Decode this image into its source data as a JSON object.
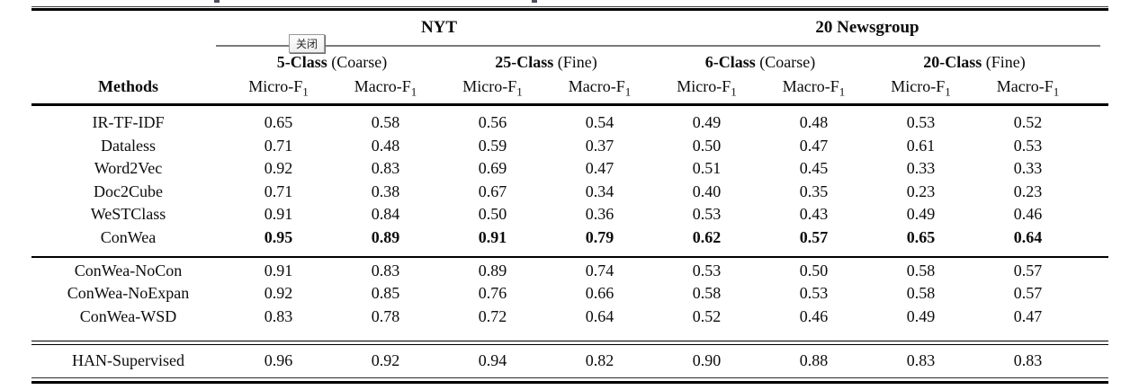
{
  "overlay": {
    "close_button_label": "关闭"
  },
  "colors": {
    "rule_black": "#000000",
    "cmidrule_gray": "#7b7b7b",
    "background": "#ffffff"
  },
  "table": {
    "header": {
      "methods_label": "Methods",
      "groups": [
        {
          "title": "NYT"
        },
        {
          "title": "20 Newsgroup"
        }
      ],
      "subgroups": [
        {
          "bold": "5-Class",
          "rest": " (Coarse)"
        },
        {
          "bold": "25-Class",
          "rest": " (Fine)"
        },
        {
          "bold": "6-Class",
          "rest": " (Coarse)"
        },
        {
          "bold": "20-Class",
          "rest": " (Fine)"
        }
      ],
      "metrics": [
        {
          "name": "Micro-F",
          "sub": "1"
        },
        {
          "name": "Macro-F",
          "sub": "1"
        },
        {
          "name": "Micro-F",
          "sub": "1"
        },
        {
          "name": "Macro-F",
          "sub": "1"
        },
        {
          "name": "Micro-F",
          "sub": "1"
        },
        {
          "name": "Macro-F",
          "sub": "1"
        },
        {
          "name": "Micro-F",
          "sub": "1"
        },
        {
          "name": "Macro-F",
          "sub": "1"
        }
      ]
    },
    "sections": {
      "baselines": [
        {
          "method": "IR-TF-IDF",
          "bold": false,
          "values": [
            "0.65",
            "0.58",
            "0.56",
            "0.54",
            "0.49",
            "0.48",
            "0.53",
            "0.52"
          ]
        },
        {
          "method": "Dataless",
          "bold": false,
          "values": [
            "0.71",
            "0.48",
            "0.59",
            "0.37",
            "0.50",
            "0.47",
            "0.61",
            "0.53"
          ]
        },
        {
          "method": "Word2Vec",
          "bold": false,
          "values": [
            "0.92",
            "0.83",
            "0.69",
            "0.47",
            "0.51",
            "0.45",
            "0.33",
            "0.33"
          ]
        },
        {
          "method": "Doc2Cube",
          "bold": false,
          "values": [
            "0.71",
            "0.38",
            "0.67",
            "0.34",
            "0.40",
            "0.35",
            "0.23",
            "0.23"
          ]
        },
        {
          "method": "WeSTClass",
          "bold": false,
          "values": [
            "0.91",
            "0.84",
            "0.50",
            "0.36",
            "0.53",
            "0.43",
            "0.49",
            "0.46"
          ]
        },
        {
          "method": "ConWea",
          "bold": true,
          "values": [
            "0.95",
            "0.89",
            "0.91",
            "0.79",
            "0.62",
            "0.57",
            "0.65",
            "0.64"
          ]
        }
      ],
      "ablations": [
        {
          "method": "ConWea-NoCon",
          "bold": false,
          "values": [
            "0.91",
            "0.83",
            "0.89",
            "0.74",
            "0.53",
            "0.50",
            "0.58",
            "0.57"
          ]
        },
        {
          "method": "ConWea-NoExpan",
          "bold": false,
          "values": [
            "0.92",
            "0.85",
            "0.76",
            "0.66",
            "0.58",
            "0.53",
            "0.58",
            "0.57"
          ]
        },
        {
          "method": "ConWea-WSD",
          "bold": false,
          "values": [
            "0.83",
            "0.78",
            "0.72",
            "0.64",
            "0.52",
            "0.46",
            "0.49",
            "0.47"
          ]
        }
      ],
      "supervised": [
        {
          "method": "HAN-Supervised",
          "bold": false,
          "values": [
            "0.96",
            "0.92",
            "0.94",
            "0.82",
            "0.90",
            "0.88",
            "0.83",
            "0.83"
          ]
        }
      ]
    }
  }
}
